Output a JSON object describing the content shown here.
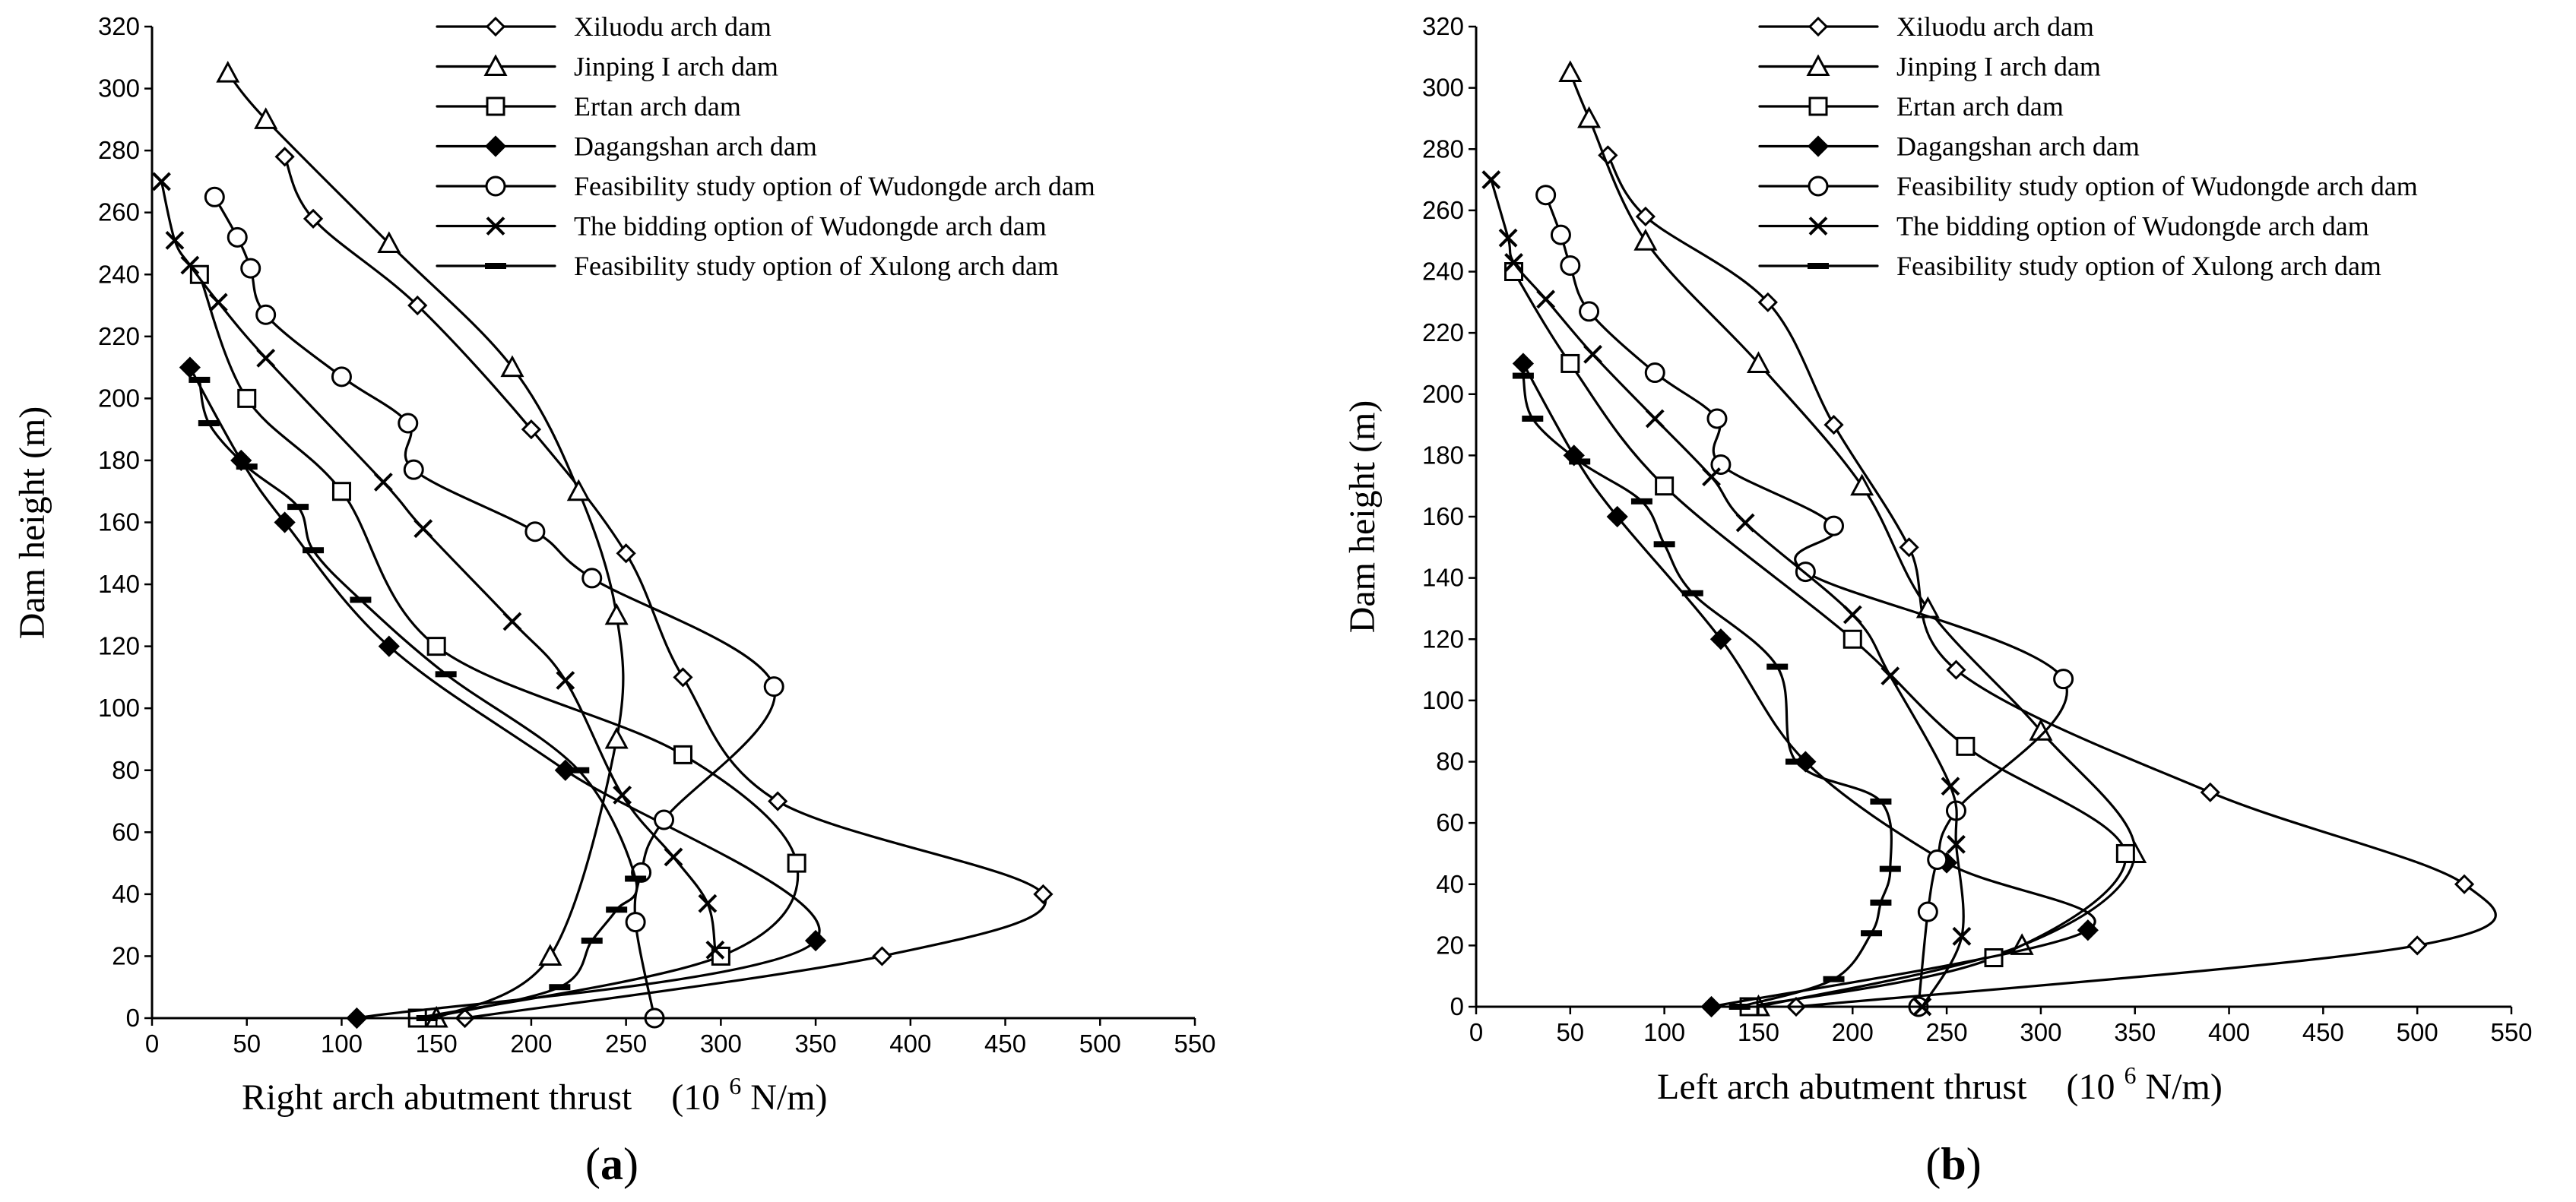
{
  "chart_data": [
    {
      "type": "line",
      "panel_label": "a",
      "xlabel": "Right arch abutment thrust",
      "xunit_prefix": "(10",
      "xunit_exp": "6",
      "xunit_suffix": "N/m)",
      "ylabel": "Dam height (m)",
      "xlim": [
        0,
        550
      ],
      "ylim": [
        0,
        320
      ],
      "xticks": [
        0,
        50,
        100,
        150,
        200,
        250,
        300,
        350,
        400,
        450,
        500,
        550
      ],
      "yticks": [
        0,
        20,
        40,
        60,
        80,
        100,
        120,
        140,
        160,
        180,
        200,
        220,
        240,
        260,
        280,
        300,
        320
      ],
      "legend_position": "top-right",
      "series": [
        {
          "name": "Xiluodu arch dam",
          "marker": "diamond-open",
          "points": [
            [
              165,
              0
            ],
            [
              385,
              20
            ],
            [
              470,
              40
            ],
            [
              330,
              70
            ],
            [
              280,
              110
            ],
            [
              250,
              150
            ],
            [
              200,
              190
            ],
            [
              140,
              230
            ],
            [
              85,
              258
            ],
            [
              70,
              278
            ]
          ]
        },
        {
          "name": "Jinping I arch dam",
          "marker": "triangle-open",
          "points": [
            [
              150,
              0
            ],
            [
              210,
              20
            ],
            [
              245,
              90
            ],
            [
              245,
              130
            ],
            [
              225,
              170
            ],
            [
              190,
              210
            ],
            [
              125,
              250
            ],
            [
              60,
              290
            ],
            [
              40,
              305
            ]
          ]
        },
        {
          "name": "Ertan arch dam",
          "marker": "square-open",
          "points": [
            [
              140,
              0
            ],
            [
              300,
              20
            ],
            [
              340,
              50
            ],
            [
              280,
              85
            ],
            [
              150,
              120
            ],
            [
              100,
              170
            ],
            [
              50,
              200
            ],
            [
              25,
              240
            ]
          ]
        },
        {
          "name": "Dagangshan arch dam",
          "marker": "diamond-filled",
          "points": [
            [
              108,
              0
            ],
            [
              350,
              25
            ],
            [
              218,
              80
            ],
            [
              125,
              120
            ],
            [
              70,
              160
            ],
            [
              47,
              180
            ],
            [
              20,
              210
            ]
          ]
        },
        {
          "name": "Feasibility study option of Wudongde arch dam",
          "marker": "circle-open",
          "points": [
            [
              265,
              0
            ],
            [
              255,
              31
            ],
            [
              258,
              47
            ],
            [
              270,
              64
            ],
            [
              328,
              107
            ],
            [
              232,
              142
            ],
            [
              202,
              157
            ],
            [
              138,
              177
            ],
            [
              135,
              192
            ],
            [
              100,
              207
            ],
            [
              60,
              227
            ],
            [
              52,
              242
            ],
            [
              45,
              252
            ],
            [
              33,
              265
            ]
          ]
        },
        {
          "name": "The bidding option of Wudongde arch dam",
          "marker": "x",
          "points": [
            [
              297,
              22
            ],
            [
              293,
              37
            ],
            [
              275,
              52
            ],
            [
              248,
              72
            ],
            [
              218,
              109
            ],
            [
              190,
              128
            ],
            [
              143,
              158
            ],
            [
              122,
              173
            ],
            [
              60,
              213
            ],
            [
              35,
              231
            ],
            [
              20,
              243
            ],
            [
              12,
              251
            ],
            [
              5,
              270
            ]
          ]
        },
        {
          "name": "Feasibility study option of Xulong arch dam",
          "marker": "dash",
          "points": [
            [
              145,
              0
            ],
            [
              215,
              10
            ],
            [
              232,
              25
            ],
            [
              245,
              35
            ],
            [
              255,
              45
            ],
            [
              225,
              80
            ],
            [
              155,
              111
            ],
            [
              110,
              135
            ],
            [
              85,
              151
            ],
            [
              77,
              165
            ],
            [
              50,
              178
            ],
            [
              30,
              192
            ],
            [
              25,
              206
            ]
          ]
        }
      ]
    },
    {
      "type": "line",
      "panel_label": "b",
      "xlabel": "Left arch abutment thrust",
      "xunit_prefix": "(10",
      "xunit_exp": "6",
      "xunit_suffix": "N/m)",
      "ylabel": "Dam height (m)",
      "xlim": [
        0,
        550
      ],
      "ylim": [
        0,
        320
      ],
      "xticks": [
        0,
        50,
        100,
        150,
        200,
        250,
        300,
        350,
        400,
        450,
        500,
        550
      ],
      "yticks": [
        0,
        20,
        40,
        60,
        80,
        100,
        120,
        140,
        160,
        180,
        200,
        220,
        240,
        260,
        280,
        300,
        320
      ],
      "legend_position": "top-right",
      "series": [
        {
          "name": "Xiluodu arch dam",
          "marker": "diamond-open",
          "points": [
            [
              170,
              0
            ],
            [
              500,
              20
            ],
            [
              525,
              40
            ],
            [
              390,
              70
            ],
            [
              255,
              110
            ],
            [
              230,
              150
            ],
            [
              190,
              190
            ],
            [
              155,
              230
            ],
            [
              90,
              258
            ],
            [
              70,
              278
            ]
          ]
        },
        {
          "name": "Jinping I arch dam",
          "marker": "triangle-open",
          "points": [
            [
              150,
              0
            ],
            [
              290,
              20
            ],
            [
              350,
              50
            ],
            [
              300,
              90
            ],
            [
              240,
              130
            ],
            [
              205,
              170
            ],
            [
              150,
              210
            ],
            [
              90,
              250
            ],
            [
              60,
              290
            ],
            [
              50,
              305
            ]
          ]
        },
        {
          "name": "Ertan arch dam",
          "marker": "square-open",
          "points": [
            [
              145,
              0
            ],
            [
              275,
              16
            ],
            [
              345,
              50
            ],
            [
              260,
              85
            ],
            [
              200,
              120
            ],
            [
              100,
              170
            ],
            [
              50,
              210
            ],
            [
              20,
              240
            ]
          ]
        },
        {
          "name": "Dagangshan arch dam",
          "marker": "diamond-filled",
          "points": [
            [
              125,
              0
            ],
            [
              325,
              25
            ],
            [
              250,
              47
            ],
            [
              175,
              80
            ],
            [
              130,
              120
            ],
            [
              75,
              160
            ],
            [
              52,
              180
            ],
            [
              25,
              210
            ]
          ]
        },
        {
          "name": "Feasibility study option of Wudongde arch dam",
          "marker": "circle-open",
          "points": [
            [
              235,
              0
            ],
            [
              240,
              31
            ],
            [
              245,
              48
            ],
            [
              255,
              64
            ],
            [
              312,
              107
            ],
            [
              175,
              142
            ],
            [
              190,
              157
            ],
            [
              130,
              177
            ],
            [
              128,
              192
            ],
            [
              95,
              207
            ],
            [
              60,
              227
            ],
            [
              50,
              242
            ],
            [
              45,
              252
            ],
            [
              37,
              265
            ]
          ]
        },
        {
          "name": "The bidding option of Wudongde arch dam",
          "marker": "x",
          "points": [
            [
              237,
              0
            ],
            [
              258,
              23
            ],
            [
              255,
              53
            ],
            [
              252,
              72
            ],
            [
              220,
              108
            ],
            [
              200,
              128
            ],
            [
              143,
              158
            ],
            [
              125,
              173
            ],
            [
              95,
              192
            ],
            [
              62,
              213
            ],
            [
              37,
              231
            ],
            [
              20,
              243
            ],
            [
              17,
              251
            ],
            [
              8,
              270
            ]
          ]
        },
        {
          "name": "Feasibility study option of Xulong arch dam",
          "marker": "dash",
          "points": [
            [
              140,
              0
            ],
            [
              190,
              9
            ],
            [
              210,
              24
            ],
            [
              215,
              34
            ],
            [
              220,
              45
            ],
            [
              215,
              67
            ],
            [
              170,
              80
            ],
            [
              160,
              111
            ],
            [
              115,
              135
            ],
            [
              100,
              151
            ],
            [
              88,
              165
            ],
            [
              55,
              178
            ],
            [
              30,
              192
            ],
            [
              25,
              206
            ]
          ]
        }
      ]
    }
  ]
}
